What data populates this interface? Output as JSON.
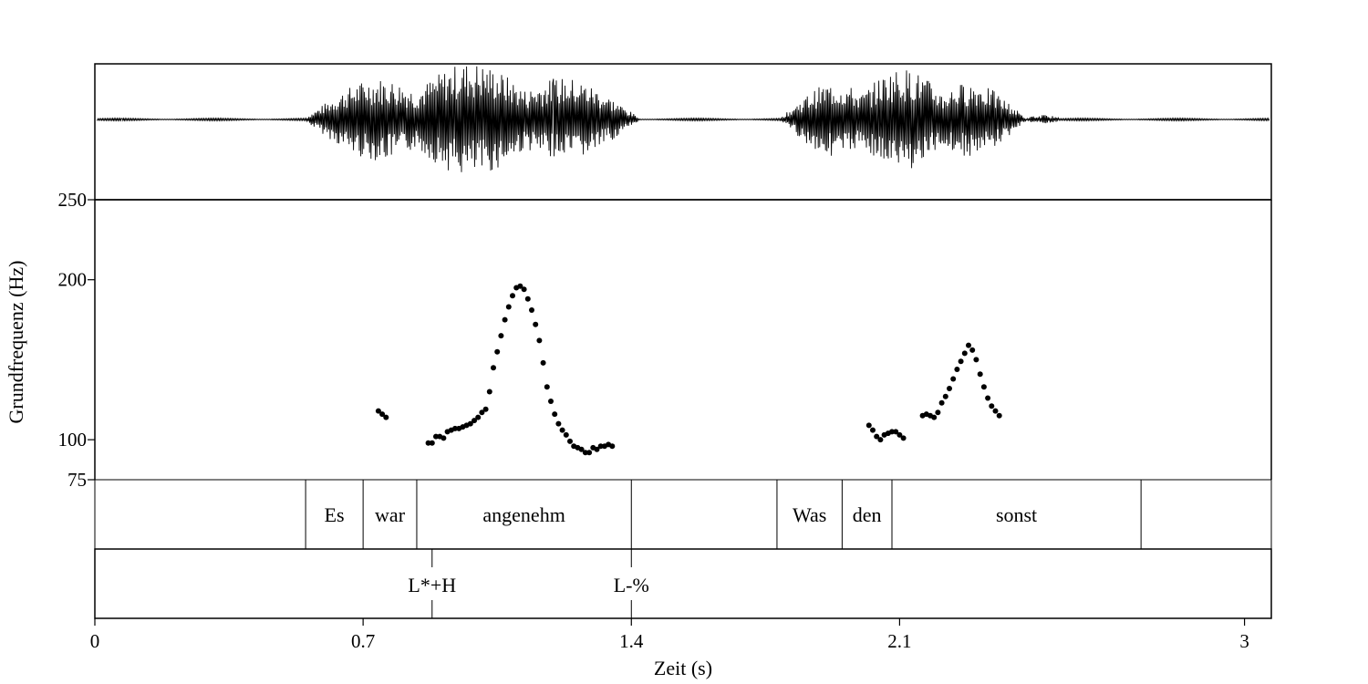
{
  "chart_data": {
    "type": "scatter",
    "xlabel": "Zeit (s)",
    "ylabel": "Grundfrequenz (Hz)",
    "xlim": [
      0,
      3.07
    ],
    "ylim": [
      75,
      250
    ],
    "x_ticks": [
      {
        "value": 0,
        "label": "0"
      },
      {
        "value": 0.7,
        "label": "0.7"
      },
      {
        "value": 1.4,
        "label": "1.4"
      },
      {
        "value": 2.1,
        "label": "2.1"
      },
      {
        "value": 3,
        "label": "3"
      }
    ],
    "y_ticks": [
      {
        "value": 250,
        "label": "250"
      },
      {
        "value": 200,
        "label": "200"
      },
      {
        "value": 100,
        "label": "100"
      },
      {
        "value": 75,
        "label": "75"
      }
    ],
    "waveform": {
      "segments": [
        {
          "start": 0.55,
          "end": 1.42,
          "amplitude": 0.95
        },
        {
          "start": 1.79,
          "end": 2.43,
          "amplitude": 0.85
        },
        {
          "start": 2.43,
          "end": 2.52,
          "amplitude": 0.08
        }
      ]
    },
    "f0_points": [
      [
        0.74,
        118
      ],
      [
        0.75,
        116
      ],
      [
        0.76,
        114
      ],
      [
        0.87,
        98
      ],
      [
        0.88,
        98
      ],
      [
        0.89,
        102
      ],
      [
        0.9,
        102
      ],
      [
        0.91,
        101
      ],
      [
        0.92,
        105
      ],
      [
        0.93,
        106
      ],
      [
        0.94,
        107
      ],
      [
        0.95,
        107
      ],
      [
        0.96,
        108
      ],
      [
        0.97,
        109
      ],
      [
        0.98,
        110
      ],
      [
        0.99,
        112
      ],
      [
        1.0,
        114
      ],
      [
        1.01,
        117
      ],
      [
        1.02,
        119
      ],
      [
        1.03,
        130
      ],
      [
        1.04,
        145
      ],
      [
        1.05,
        155
      ],
      [
        1.06,
        165
      ],
      [
        1.07,
        175
      ],
      [
        1.08,
        183
      ],
      [
        1.09,
        190
      ],
      [
        1.1,
        195
      ],
      [
        1.11,
        196
      ],
      [
        1.12,
        194
      ],
      [
        1.13,
        188
      ],
      [
        1.14,
        181
      ],
      [
        1.15,
        172
      ],
      [
        1.16,
        162
      ],
      [
        1.17,
        148
      ],
      [
        1.18,
        133
      ],
      [
        1.19,
        124
      ],
      [
        1.2,
        116
      ],
      [
        1.21,
        110
      ],
      [
        1.22,
        106
      ],
      [
        1.23,
        103
      ],
      [
        1.24,
        99
      ],
      [
        1.25,
        96
      ],
      [
        1.26,
        95
      ],
      [
        1.27,
        94
      ],
      [
        1.28,
        92
      ],
      [
        1.29,
        92
      ],
      [
        1.3,
        95
      ],
      [
        1.31,
        94
      ],
      [
        1.32,
        96
      ],
      [
        1.33,
        96
      ],
      [
        1.34,
        97
      ],
      [
        1.35,
        96
      ],
      [
        2.02,
        109
      ],
      [
        2.03,
        106
      ],
      [
        2.04,
        102
      ],
      [
        2.05,
        100
      ],
      [
        2.06,
        103
      ],
      [
        2.07,
        104
      ],
      [
        2.08,
        105
      ],
      [
        2.09,
        105
      ],
      [
        2.1,
        103
      ],
      [
        2.11,
        101
      ],
      [
        2.16,
        115
      ],
      [
        2.17,
        116
      ],
      [
        2.18,
        115
      ],
      [
        2.19,
        114
      ],
      [
        2.2,
        117
      ],
      [
        2.21,
        123
      ],
      [
        2.22,
        127
      ],
      [
        2.23,
        132
      ],
      [
        2.24,
        138
      ],
      [
        2.25,
        144
      ],
      [
        2.26,
        149
      ],
      [
        2.27,
        154
      ],
      [
        2.28,
        159
      ],
      [
        2.29,
        156
      ],
      [
        2.3,
        150
      ],
      [
        2.31,
        141
      ],
      [
        2.32,
        133
      ],
      [
        2.33,
        126
      ],
      [
        2.34,
        121
      ],
      [
        2.35,
        118
      ],
      [
        2.36,
        115
      ]
    ],
    "word_tier": {
      "boundaries": [
        0.55,
        0.7,
        0.84,
        1.4,
        1.78,
        1.95,
        2.08,
        2.73
      ],
      "intervals": [
        {
          "start": 0.55,
          "end": 0.7,
          "label": "Es"
        },
        {
          "start": 0.7,
          "end": 0.84,
          "label": "war"
        },
        {
          "start": 0.84,
          "end": 1.4,
          "label": "angenehm"
        },
        {
          "start": 1.78,
          "end": 1.95,
          "label": "Was"
        },
        {
          "start": 1.95,
          "end": 2.08,
          "label": "den"
        },
        {
          "start": 2.08,
          "end": 2.73,
          "label": "sonst"
        }
      ]
    },
    "tone_tier": {
      "points": [
        {
          "time": 0.88,
          "label": "L*+H"
        },
        {
          "time": 1.4,
          "label": "L-%"
        }
      ]
    }
  }
}
